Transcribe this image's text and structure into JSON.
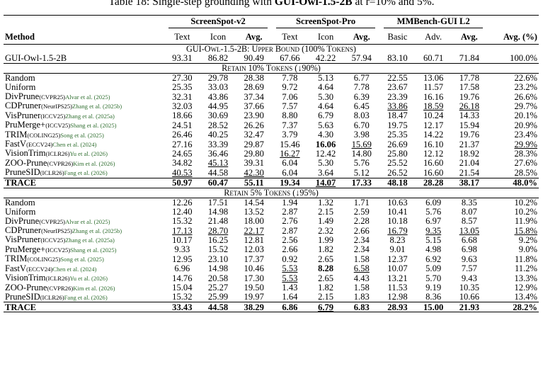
{
  "caption": {
    "prefix": "Table 18: Single-step grounding with ",
    "model": "GUI-Owl-1.5-2B",
    "suffix": " at r=10% and 5%."
  },
  "header": {
    "groups": [
      "ScreenSpot-v2",
      "ScreenSpot-Pro",
      "MMBench-GUI L2"
    ],
    "method": "Method",
    "columns": [
      "Text",
      "Icon",
      "Avg.",
      "Text",
      "Icon",
      "Avg.",
      "Basic",
      "Adv.",
      "Avg.",
      "Avg. (%)"
    ]
  },
  "sections": [
    {
      "title": "GUI-Owl-1.5-2B: Upper Bound (100% Tokens)"
    },
    {
      "title": "Retain 10% Tokens (↓90%)"
    },
    {
      "title": "Retain 5% Tokens (↓95%)"
    }
  ],
  "upper_bound": {
    "method": "GUI-Owl-1.5-2B",
    "values": [
      "93.31",
      "86.82",
      "90.49",
      "67.66",
      "42.22",
      "57.94",
      "83.10",
      "60.71",
      "71.84",
      "100.0%"
    ]
  },
  "retain10": [
    {
      "method": "Random",
      "venue": "",
      "cite": "",
      "values": [
        "27.30",
        "29.78",
        "28.38",
        "7.78",
        "5.13",
        "6.77",
        "22.55",
        "13.06",
        "17.78",
        "22.6%"
      ]
    },
    {
      "method": "Uniform",
      "venue": "",
      "cite": "",
      "values": [
        "25.35",
        "33.03",
        "28.69",
        "9.72",
        "4.64",
        "7.78",
        "23.67",
        "11.57",
        "17.58",
        "23.2%"
      ]
    },
    {
      "method": "DivPrune",
      "venue": "(CVPR25)",
      "cite": "Alvar et al. (2025)",
      "values": [
        "32.31",
        "43.86",
        "37.34",
        "7.06",
        "5.30",
        "6.39",
        "23.39",
        "16.16",
        "19.76",
        "26.6%"
      ]
    },
    {
      "method": "CDPruner",
      "venue": "(NeurIPS25)",
      "cite": "Zhang et al. (2025b)",
      "values": [
        "32.03",
        "44.95",
        "37.66",
        "7.57",
        "4.64",
        "6.45",
        "33.86",
        "18.59",
        "26.18",
        "29.7%"
      ]
    },
    {
      "method": "VisPruner",
      "venue": "(ICCV25)",
      "cite": "Zhang et al. (2025a)",
      "values": [
        "18.66",
        "30.69",
        "23.90",
        "8.80",
        "6.79",
        "8.03",
        "18.47",
        "10.24",
        "14.33",
        "20.1%"
      ]
    },
    {
      "method": "PruMerge+",
      "venue": "(ICCV25)",
      "cite": "Shang et al. (2025)",
      "values": [
        "24.51",
        "28.52",
        "26.26",
        "7.37",
        "5.63",
        "6.70",
        "19.75",
        "12.17",
        "15.94",
        "20.9%"
      ]
    },
    {
      "method": "TRIM",
      "venue": "(COLING25)",
      "cite": "Song et al. (2025)",
      "values": [
        "26.46",
        "40.25",
        "32.47",
        "3.79",
        "4.30",
        "3.98",
        "25.35",
        "14.22",
        "19.76",
        "23.4%"
      ]
    },
    {
      "method": "FastV",
      "venue": "(ECCV24)",
      "cite": "Chen et al. (2024)",
      "values": [
        "27.16",
        "33.39",
        "29.87",
        "15.46",
        "16.06",
        "15.69",
        "26.69",
        "16.10",
        "21.37",
        "29.9%"
      ]
    },
    {
      "method": "VisionTrim",
      "venue": "(ICLR26)",
      "cite": "Yu et al. (2026)",
      "values": [
        "24.65",
        "36.46",
        "29.80",
        "16.27",
        "12.42",
        "14.80",
        "25.80",
        "12.12",
        "18.92",
        "28.3%"
      ]
    },
    {
      "method": "ZOO-Prune",
      "venue": "(CVPR26)",
      "cite": "Kim et al. (2026)",
      "values": [
        "34.82",
        "45.13",
        "39.31",
        "6.04",
        "5.30",
        "5.76",
        "25.52",
        "16.60",
        "21.04",
        "27.6%"
      ]
    },
    {
      "method": "PruneSID",
      "venue": "(ICLR26)",
      "cite": "Fang et al. (2026)",
      "values": [
        "40.53",
        "44.58",
        "42.30",
        "6.04",
        "3.64",
        "5.12",
        "26.52",
        "16.60",
        "21.54",
        "28.5%"
      ]
    }
  ],
  "trace10": {
    "method": "TRACE",
    "values": [
      "50.97",
      "60.47",
      "55.11",
      "19.34",
      "14.07",
      "17.33",
      "48.18",
      "28.28",
      "38.17",
      "48.0%"
    ]
  },
  "retain5": [
    {
      "method": "Random",
      "venue": "",
      "cite": "",
      "values": [
        "12.26",
        "17.51",
        "14.54",
        "1.94",
        "1.32",
        "1.71",
        "10.63",
        "6.09",
        "8.35",
        "10.2%"
      ]
    },
    {
      "method": "Uniform",
      "venue": "",
      "cite": "",
      "values": [
        "12.40",
        "14.98",
        "13.52",
        "2.87",
        "2.15",
        "2.59",
        "10.41",
        "5.76",
        "8.07",
        "10.2%"
      ]
    },
    {
      "method": "DivPrune",
      "venue": "(CVPR25)",
      "cite": "Alvar et al. (2025)",
      "values": [
        "15.32",
        "21.48",
        "18.00",
        "2.76",
        "1.49",
        "2.28",
        "10.18",
        "6.97",
        "8.57",
        "11.9%"
      ]
    },
    {
      "method": "CDPruner",
      "venue": "(NeurIPS25)",
      "cite": "Zhang et al. (2025b)",
      "values": [
        "17.13",
        "28.70",
        "22.17",
        "2.87",
        "2.32",
        "2.66",
        "16.79",
        "9.35",
        "13.05",
        "15.8%"
      ]
    },
    {
      "method": "VisPruner",
      "venue": "(ICCV25)",
      "cite": "Zhang et al. (2025a)",
      "values": [
        "10.17",
        "16.25",
        "12.81",
        "2.56",
        "1.99",
        "2.34",
        "8.23",
        "5.15",
        "6.68",
        "9.2%"
      ]
    },
    {
      "method": "PruMerge+",
      "venue": "(ICCV25)",
      "cite": "Shang et al. (2025)",
      "values": [
        "9.33",
        "15.52",
        "12.03",
        "2.66",
        "1.82",
        "2.34",
        "9.01",
        "4.98",
        "6.98",
        "9.0%"
      ]
    },
    {
      "method": "TRIM",
      "venue": "(COLING25)",
      "cite": "Song et al. (2025)",
      "values": [
        "12.95",
        "23.10",
        "17.37",
        "0.92",
        "2.65",
        "1.58",
        "12.37",
        "6.92",
        "9.63",
        "11.8%"
      ]
    },
    {
      "method": "FastV",
      "venue": "(ECCV24)",
      "cite": "Chen et al. (2024)",
      "values": [
        "6.96",
        "14.98",
        "10.46",
        "5.53",
        "8.28",
        "6.58",
        "10.07",
        "5.09",
        "7.57",
        "11.2%"
      ]
    },
    {
      "method": "VisionTrim",
      "venue": "(ICLR26)",
      "cite": "Yu et al. (2026)",
      "values": [
        "14.76",
        "20.58",
        "17.30",
        "5.53",
        "2.65",
        "4.43",
        "13.21",
        "5.70",
        "9.43",
        "13.3%"
      ]
    },
    {
      "method": "ZOO-Prune",
      "venue": "(CVPR26)",
      "cite": "Kim et al. (2026)",
      "values": [
        "15.04",
        "25.27",
        "19.50",
        "1.43",
        "1.82",
        "1.58",
        "11.53",
        "9.19",
        "10.35",
        "12.9%"
      ]
    },
    {
      "method": "PruneSID",
      "venue": "(ICLR26)",
      "cite": "Fang et al. (2026)",
      "values": [
        "15.32",
        "25.99",
        "19.97",
        "1.64",
        "2.15",
        "1.83",
        "12.98",
        "8.36",
        "10.66",
        "13.4%"
      ]
    }
  ],
  "trace5": {
    "method": "TRACE",
    "values": [
      "33.43",
      "44.58",
      "38.29",
      "6.86",
      "6.79",
      "6.83",
      "28.93",
      "15.00",
      "21.93",
      "28.2%"
    ]
  },
  "underlines": {
    "retain10": {
      "3": [
        6,
        7,
        8
      ],
      "7": [
        5,
        9
      ],
      "8": [
        3
      ],
      "9": [
        1
      ],
      "10": [
        0,
        2
      ]
    },
    "trace10": [
      4
    ],
    "retain5": {
      "3": [
        0,
        1,
        2,
        6,
        7,
        8,
        9
      ],
      "7": [
        3,
        5
      ],
      "8": [
        3
      ]
    },
    "trace5": [
      4
    ]
  },
  "bold_cells": {
    "retain10": {
      "7": [
        4
      ]
    },
    "retain5": {
      "7": [
        4
      ]
    }
  }
}
